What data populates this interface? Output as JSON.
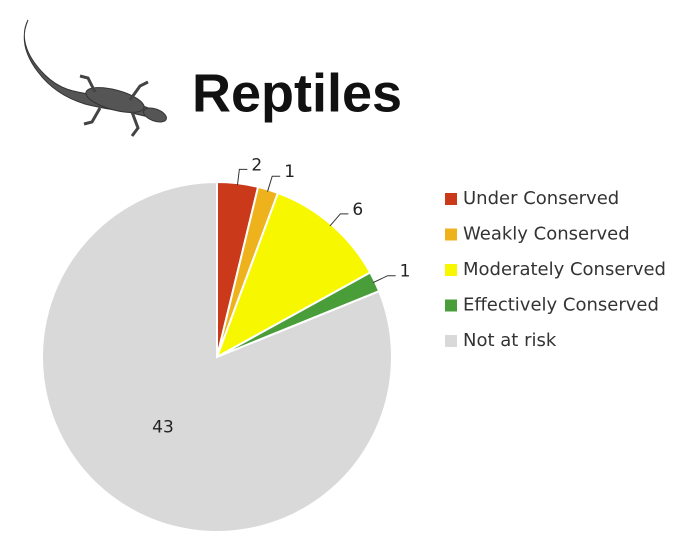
{
  "chart_data": {
    "type": "pie",
    "title": "Reptiles",
    "categories": [
      "Under Conserved",
      "Weakly Conserved",
      "Moderately Conserved",
      "Effectively Conserved",
      "Not at risk"
    ],
    "values": [
      2,
      1,
      6,
      1,
      43
    ],
    "colors": [
      "#c9391a",
      "#eeb21c",
      "#f7f700",
      "#4a9e3a",
      "#d9d9d9"
    ],
    "legend": "right"
  }
}
